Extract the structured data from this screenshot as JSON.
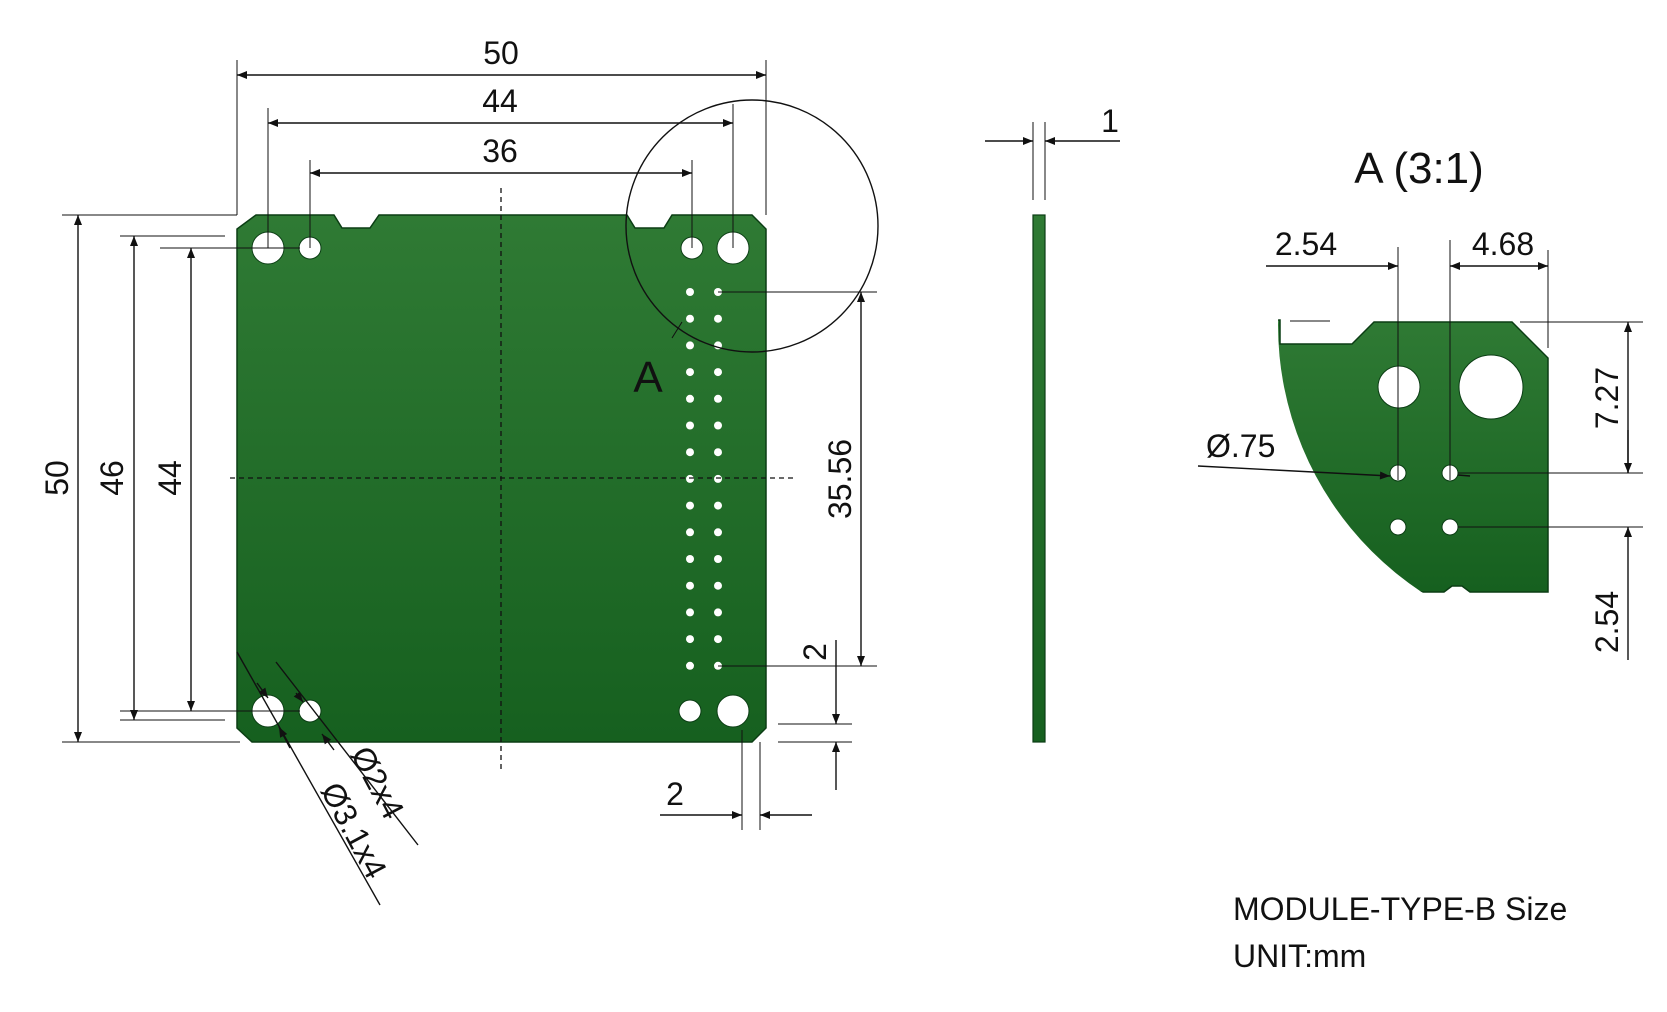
{
  "colors": {
    "board_light": "#2f7a34",
    "board_dark": "#16601f",
    "line": "#111111",
    "hole": "#ffffff"
  },
  "top_view": {
    "dim_width_50": "50",
    "dim_44_horizontal": "44",
    "dim_36": "36",
    "dim_height_50": "50",
    "dim_46": "46",
    "dim_44_vertical": "44",
    "dim_35_56": "35.56",
    "dim_2_vertical": "2",
    "dim_2_horizontal": "2",
    "detail_label": "A",
    "hole_note_small": "Ø2x4",
    "hole_note_large": "Ø3.1x4"
  },
  "side_view": {
    "dim_thickness": "1"
  },
  "detail_view": {
    "title": "A (3:1)",
    "dim_2_54_top": "2.54",
    "dim_4_68": "4.68",
    "dim_7_27": "7.27",
    "dim_0_75": "Ø.75",
    "dim_2_54_right": "2.54"
  },
  "footer": {
    "model": "MODULE-TYPE-B Size",
    "unit": "UNIT:mm"
  }
}
